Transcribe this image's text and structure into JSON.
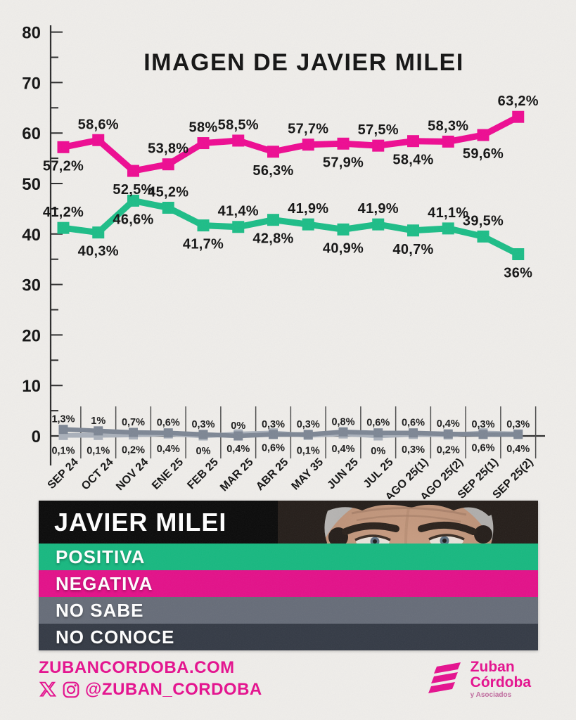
{
  "title": "IMAGEN DE JAVIER MILEI",
  "chart_data": {
    "type": "line",
    "title": "IMAGEN DE JAVIER MILEI",
    "categories": [
      "SEP 24",
      "OCT 24",
      "NOV 24",
      "ENE 25",
      "FEB 25",
      "MAR 25",
      "ABR 25",
      "MAY 35",
      "JUN 25",
      "JUL 25",
      "AGO 25(1)",
      "AGO 25(2)",
      "SEP 25(1)",
      "SEP 25(2)"
    ],
    "ylim": [
      0,
      80
    ],
    "yticks": [
      0,
      10,
      20,
      30,
      40,
      50,
      60,
      70,
      80
    ],
    "grid": false,
    "legend_position": "bottom-block",
    "series": [
      {
        "name": "NO CONOCE",
        "color": "#a9b0ba",
        "values": [
          0.1,
          0.1,
          0.2,
          0.4,
          0,
          0.4,
          0.6,
          0.1,
          0.4,
          0,
          0.3,
          0.2,
          0.6,
          0.4
        ],
        "labels": [
          "0,1%",
          "0,1%",
          "0,2%",
          "0,4%",
          "0%",
          "0,4%",
          "0,6%",
          "0,1%",
          "0,4%",
          "0%",
          "0,3%",
          "0,2%",
          "0,6%",
          "0,4%"
        ],
        "label_side": [
          "below",
          "below",
          "below",
          "below",
          "below",
          "below",
          "below",
          "below",
          "below",
          "below",
          "below",
          "below",
          "below",
          "below"
        ]
      },
      {
        "name": "NO SABE",
        "color": "#7d8694",
        "values": [
          1.3,
          1,
          0.7,
          0.6,
          0.3,
          0,
          0.3,
          0.3,
          0.8,
          0.6,
          0.6,
          0.4,
          0.3,
          0.3
        ],
        "labels": [
          "1,3%",
          "1%",
          "0,7%",
          "0,6%",
          "0,3%",
          "0%",
          "0,3%",
          "0,3%",
          "0,8%",
          "0,6%",
          "0,6%",
          "0,4%",
          "0,3%",
          "0,3%"
        ],
        "label_side": [
          "above",
          "above",
          "above",
          "above",
          "above",
          "above",
          "above",
          "above",
          "above",
          "above",
          "above",
          "above",
          "above",
          "above"
        ]
      },
      {
        "name": "POSITIVA",
        "color": "#1cbd87",
        "values": [
          41.2,
          40.3,
          46.6,
          45.2,
          41.7,
          41.4,
          42.8,
          41.9,
          40.9,
          41.9,
          40.7,
          41.1,
          39.5,
          36
        ],
        "labels": [
          "41,2%",
          "40,3%",
          "46,6%",
          "45,2%",
          "41,7%",
          "41,4%",
          "42,8%",
          "41,9%",
          "40,9%",
          "41,9%",
          "40,7%",
          "41,1%",
          "39,5%",
          "36%"
        ],
        "label_side": [
          "above",
          "below",
          "below",
          "above",
          "below",
          "above",
          "below",
          "above",
          "below",
          "above",
          "below",
          "above",
          "above",
          "below"
        ]
      },
      {
        "name": "NEGATIVA",
        "color": "#ee0b92",
        "values": [
          57.2,
          58.6,
          52.5,
          53.8,
          58,
          58.5,
          56.3,
          57.7,
          57.9,
          57.5,
          58.4,
          58.3,
          59.6,
          63.2
        ],
        "labels": [
          "57,2%",
          "58,6%",
          "52,5%",
          "53,8%",
          "58%",
          "58,5%",
          "56,3%",
          "57,7%",
          "57,9%",
          "57,5%",
          "58,4%",
          "58,3%",
          "59,6%",
          "63,2%"
        ],
        "label_side": [
          "below",
          "above",
          "below",
          "above",
          "above",
          "above",
          "below",
          "above",
          "below",
          "above",
          "below",
          "above",
          "below",
          "above"
        ]
      }
    ]
  },
  "legend": {
    "title": "JAVIER MILEI",
    "items": [
      {
        "label": "POSITIVA",
        "color": "#17b880"
      },
      {
        "label": "NEGATIVA",
        "color": "#e31089"
      },
      {
        "label": "NO SABE",
        "color": "#666c78"
      },
      {
        "label": "NO CONOCE",
        "color": "#343a45"
      }
    ]
  },
  "footer": {
    "website": "ZUBANCORDOBA.COM",
    "social_handle": "@ZUBAN_CORDOBA",
    "icons": [
      "x-icon",
      "instagram-icon"
    ],
    "logo": {
      "line1": "Zuban",
      "line2": "Córdoba",
      "line3": "y Asociados"
    }
  },
  "colors": {
    "paper": "#efedea",
    "positive": "#1cbd87",
    "negative": "#ee0b92",
    "no_sabe": "#7d8694",
    "no_conoce": "#a9b0ba",
    "accent_pink": "#e5108e"
  }
}
